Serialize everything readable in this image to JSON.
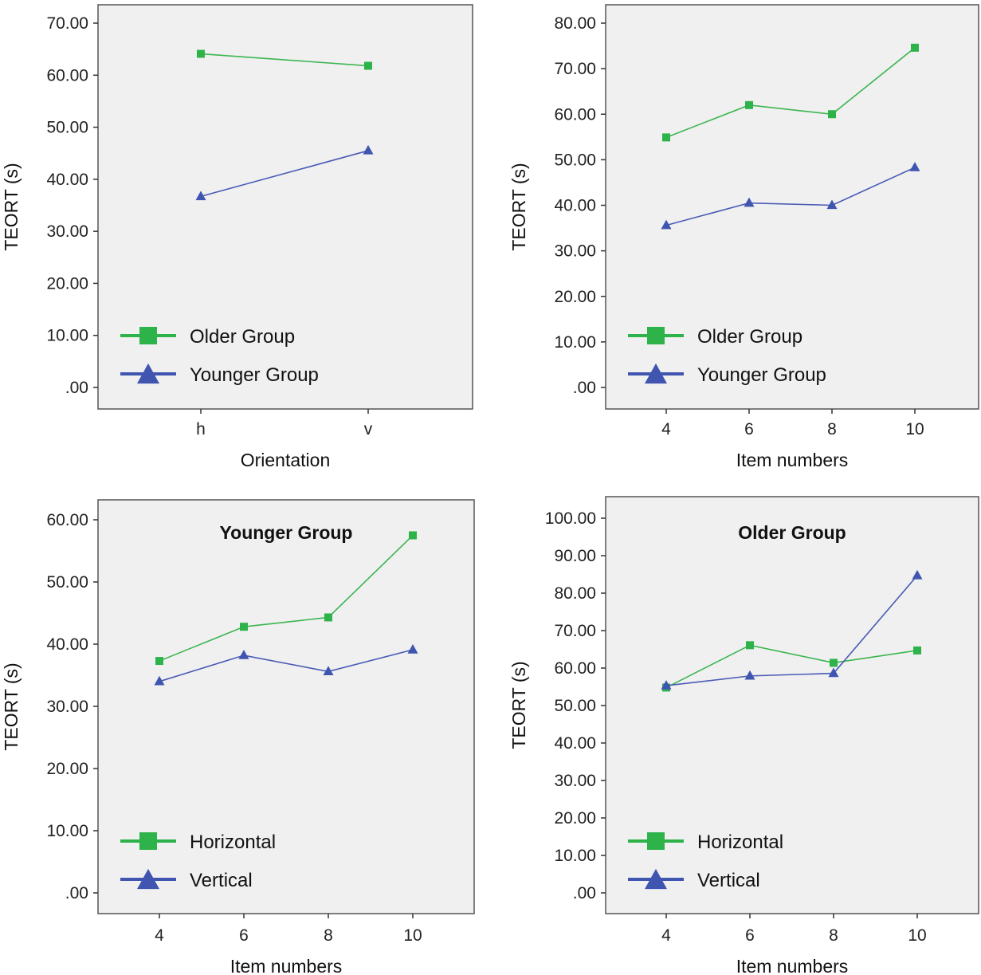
{
  "colors": {
    "green": "#3cb550",
    "blue": "#4a5bb5",
    "green_marker": "#2db34a",
    "blue_marker": "#3f55b0",
    "plot_bg": "#f0f0f0"
  },
  "chart_data": [
    {
      "type": "line",
      "title": "",
      "xlabel": "Orientation",
      "ylabel": "TEORT (s)",
      "categories": [
        "h",
        "v"
      ],
      "ylim": [
        0,
        70
      ],
      "yticks": [
        ".00",
        "10.00",
        "20.00",
        "30.00",
        "40.00",
        "50.00",
        "60.00",
        "70.00"
      ],
      "series": [
        {
          "name": "Older Group",
          "marker": "square",
          "color": "green",
          "values": [
            64.1,
            61.8
          ]
        },
        {
          "name": "Younger Group",
          "marker": "triangle",
          "color": "blue",
          "values": [
            36.7,
            45.5
          ]
        }
      ],
      "legend_position": "bottom-left"
    },
    {
      "type": "line",
      "title": "",
      "xlabel": "Item numbers",
      "ylabel": "TEORT (s)",
      "categories": [
        "4",
        "6",
        "8",
        "10"
      ],
      "ylim": [
        0,
        80
      ],
      "yticks": [
        ".00",
        "10.00",
        "20.00",
        "30.00",
        "40.00",
        "50.00",
        "60.00",
        "70.00",
        "80.00"
      ],
      "series": [
        {
          "name": "Older Group",
          "marker": "square",
          "color": "green",
          "values": [
            54.9,
            62.0,
            60.0,
            74.6
          ]
        },
        {
          "name": "Younger Group",
          "marker": "triangle",
          "color": "blue",
          "values": [
            35.6,
            40.5,
            40.0,
            48.3
          ]
        }
      ],
      "legend_position": "bottom-left"
    },
    {
      "type": "line",
      "title": "Younger Group",
      "xlabel": "Item numbers",
      "ylabel": "TEORT (s)",
      "categories": [
        "4",
        "6",
        "8",
        "10"
      ],
      "ylim": [
        0,
        60
      ],
      "yticks": [
        ".00",
        "10.00",
        "20.00",
        "30.00",
        "40.00",
        "50.00",
        "60.00"
      ],
      "series": [
        {
          "name": "Horizontal",
          "marker": "square",
          "color": "green",
          "values": [
            37.3,
            42.8,
            44.3,
            57.5
          ]
        },
        {
          "name": "Vertical",
          "marker": "triangle",
          "color": "blue",
          "values": [
            34.0,
            38.2,
            35.6,
            39.1
          ]
        }
      ],
      "legend_position": "bottom-left"
    },
    {
      "type": "line",
      "title": "Older Group",
      "xlabel": "Item numbers",
      "ylabel": "TEORT (s)",
      "categories": [
        "4",
        "6",
        "8",
        "10"
      ],
      "ylim": [
        0,
        100
      ],
      "yticks": [
        ".00",
        "10.00",
        "20.00",
        "30.00",
        "40.00",
        "50.00",
        "60.00",
        "70.00",
        "80.00",
        "90.00",
        "100.00"
      ],
      "series": [
        {
          "name": "Horizontal",
          "marker": "square",
          "color": "green",
          "values": [
            54.8,
            66.1,
            61.4,
            64.7
          ]
        },
        {
          "name": "Vertical",
          "marker": "triangle",
          "color": "blue",
          "values": [
            55.3,
            57.9,
            58.6,
            84.7
          ]
        }
      ],
      "legend_position": "bottom-left"
    }
  ]
}
